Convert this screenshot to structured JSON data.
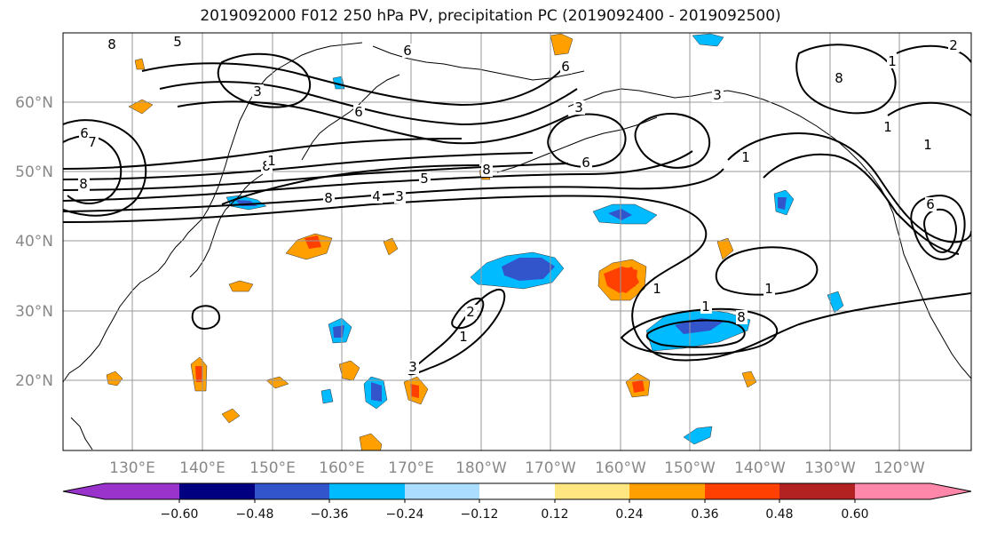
{
  "title": "2019092000 F012 250 hPa PV, precipitation PC (2019092400 - 2019092500)",
  "lat_labels": [
    "60°N",
    "50°N",
    "40°N",
    "30°N",
    "20°N"
  ],
  "lon_labels": [
    "130°E",
    "140°E",
    "150°E",
    "160°E",
    "170°E",
    "180°W",
    "170°W",
    "160°W",
    "150°W",
    "140°W",
    "130°W",
    "120°W"
  ],
  "colorbar": {
    "colors": [
      "#9933cc",
      "#000080",
      "#3355cc",
      "#00bbff",
      "#aaddff",
      "#ffffff",
      "#ffe680",
      "#ffa000",
      "#ff4000",
      "#b22222",
      "#ff88aa"
    ],
    "tick_labels": [
      "−0.60",
      "−0.48",
      "−0.36",
      "−0.24",
      "−0.12",
      "0.12",
      "0.24",
      "0.36",
      "0.48",
      "0.60"
    ]
  },
  "contour_labels": [
    "8",
    "5",
    "6",
    "3",
    "6",
    "7",
    "8",
    "8",
    "6",
    "1",
    "8",
    "4",
    "3",
    "5",
    "1",
    "8",
    "3",
    "6",
    "6",
    "3",
    "1",
    "8",
    "1",
    "2",
    "1",
    "1",
    "1",
    "2",
    "3",
    "1",
    "1",
    "8",
    "6"
  ]
}
